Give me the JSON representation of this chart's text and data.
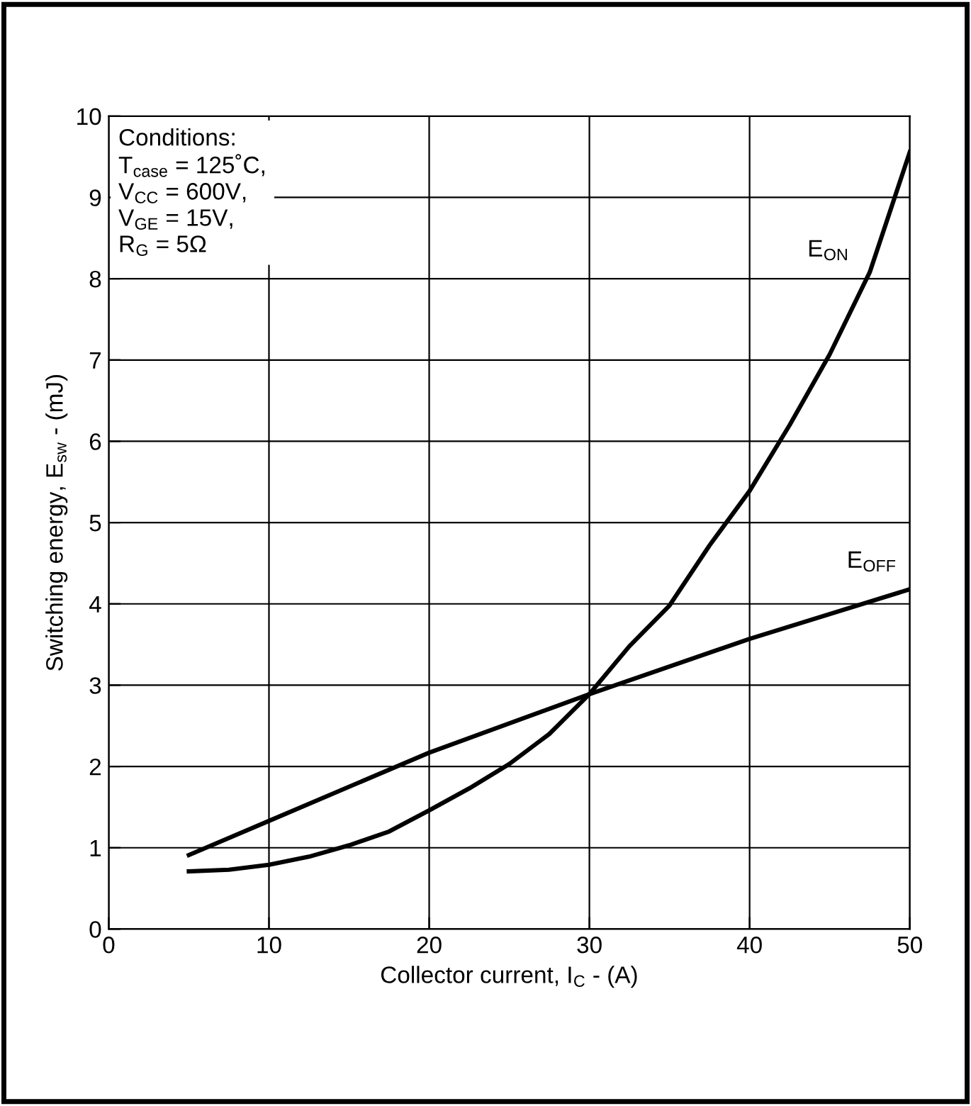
{
  "chart_data": {
    "type": "line",
    "xlabel": "Collector current, I$_{C}$ - (A)",
    "ylabel": "Switching energy, E$_{sw}$ - (mJ)",
    "series": [
      {
        "name": "E$_{ON}$",
        "color": "#000000",
        "x": [
          5,
          7.5,
          10,
          12.5,
          15,
          17.5,
          20,
          22.5,
          25,
          27.5,
          30,
          32.5,
          35,
          37.5,
          40,
          42.5,
          45,
          47.5,
          50
        ],
        "values": [
          0.71,
          0.73,
          0.79,
          0.89,
          1.03,
          1.2,
          1.46,
          1.73,
          2.03,
          2.4,
          2.89,
          3.48,
          3.98,
          4.72,
          5.39,
          6.2,
          7.07,
          8.08,
          9.56
        ]
      },
      {
        "name": "E$_{OFF}$",
        "color": "#000000",
        "x": [
          5,
          10,
          20,
          30,
          40,
          50
        ],
        "values": [
          0.91,
          1.33,
          2.17,
          2.89,
          3.57,
          4.18
        ]
      }
    ],
    "annotations": [
      "Conditions:",
      "T$_{case}$ = 125˚C,",
      "V$_{CC}$ = 600V,",
      "V$_{GE}$ = 15V,",
      "R$_{G}$ = 5Ω"
    ],
    "xlim": [
      0,
      50
    ],
    "ylim": [
      0,
      10
    ],
    "xticks": [
      0,
      10,
      20,
      30,
      40,
      50
    ],
    "yticks": [
      0,
      1,
      2,
      3,
      4,
      5,
      6,
      7,
      8,
      9,
      10
    ],
    "grid": true,
    "legend": false,
    "marker": "none",
    "line_style": "solid"
  }
}
